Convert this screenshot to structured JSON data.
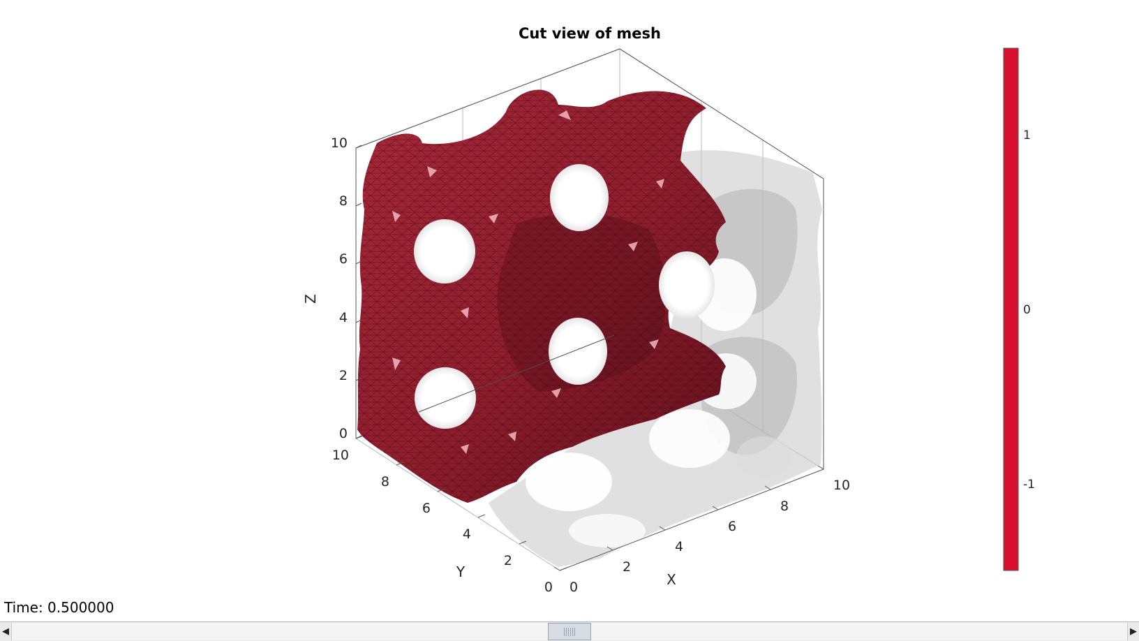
{
  "figure": {
    "title": "Cut view of mesh",
    "time_label": "Time: 0.500000"
  },
  "axes": {
    "x": {
      "label": "X",
      "ticks": [
        "0",
        "2",
        "4",
        "6",
        "8",
        "10"
      ]
    },
    "y": {
      "label": "Y",
      "ticks": [
        "0",
        "2",
        "4",
        "6",
        "8",
        "10"
      ]
    },
    "z": {
      "label": "Z",
      "ticks": [
        "0",
        "2",
        "4",
        "6",
        "8",
        "10"
      ]
    }
  },
  "colorbar": {
    "ticks": [
      "1",
      "0",
      "-1"
    ],
    "color": "#d9102e"
  },
  "mesh": {
    "solid_color": "#8e1d2c",
    "ghost_color": "#bdbdbd"
  },
  "slider": {
    "value_fraction": 0.5,
    "left_arrow": "◀",
    "right_arrow": "▶"
  }
}
